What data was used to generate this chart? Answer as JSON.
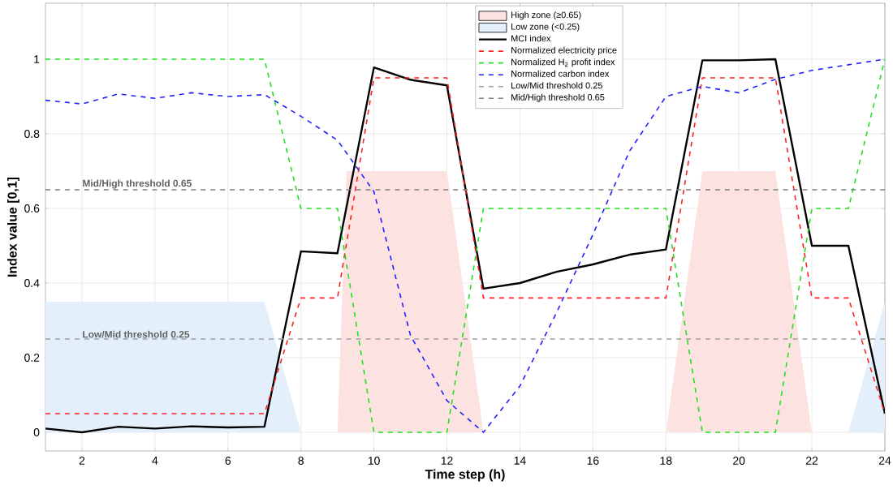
{
  "chart_data": {
    "type": "line",
    "xlabel": "Time step (h)",
    "ylabel": "Index value [0,1]",
    "x": [
      1,
      2,
      3,
      4,
      5,
      6,
      7,
      8,
      9,
      10,
      11,
      12,
      13,
      14,
      15,
      16,
      17,
      18,
      19,
      20,
      21,
      22,
      23,
      24
    ],
    "xlim": [
      1,
      24
    ],
    "ylim": [
      -0.05,
      1.15
    ],
    "xticks": [
      2,
      4,
      6,
      8,
      10,
      12,
      14,
      16,
      18,
      20,
      22,
      24
    ],
    "yticks": [
      0,
      0.2,
      0.4,
      0.6,
      0.8,
      1
    ],
    "grid": true,
    "legend": "top",
    "marker": "none",
    "series": [
      {
        "name": "High zone (≥0.65)",
        "type": "area",
        "color": "#fde2e2",
        "x": [
          9,
          9.25,
          12,
          13,
          18,
          19,
          21,
          22
        ],
        "values": [
          0,
          0.7,
          0.7,
          0,
          0,
          0.7,
          0.7,
          0
        ]
      },
      {
        "name": "Low zone (<0.25)",
        "type": "area",
        "color": "#e3f0fc",
        "x": [
          1,
          7,
          8,
          23,
          24
        ],
        "values": [
          0.35,
          0.35,
          0,
          0,
          0.35
        ]
      },
      {
        "name": "MCI index",
        "color": "#000000",
        "line_style": "solid",
        "values": [
          0.01,
          0.0,
          0.015,
          0.01,
          0.016,
          0.013,
          0.015,
          0.485,
          0.48,
          0.978,
          0.945,
          0.93,
          0.385,
          0.4,
          0.43,
          0.45,
          0.476,
          0.49,
          0.997,
          0.997,
          1.0,
          0.5,
          0.5,
          0.05
        ]
      },
      {
        "name": "Normalized electricity price",
        "color": "#ff2020",
        "line_style": "dashed",
        "values": [
          0.05,
          0.05,
          0.05,
          0.05,
          0.05,
          0.05,
          0.05,
          0.36,
          0.36,
          0.95,
          0.95,
          0.95,
          0.36,
          0.36,
          0.36,
          0.36,
          0.36,
          0.36,
          0.95,
          0.95,
          0.95,
          0.36,
          0.36,
          0.05
        ]
      },
      {
        "name": "Normalized H$_{2}$ profit index",
        "color": "#20e020",
        "line_style": "dashed",
        "values": [
          1,
          1,
          1,
          1,
          1,
          1,
          1,
          0.6,
          0.6,
          0,
          0,
          0,
          0.6,
          0.6,
          0.6,
          0.6,
          0.6,
          0.6,
          0,
          0,
          0,
          0.6,
          0.6,
          1
        ]
      },
      {
        "name": "Normalized carbon index",
        "color": "#2020ff",
        "line_style": "dashed",
        "values": [
          0.89,
          0.88,
          0.907,
          0.895,
          0.91,
          0.9,
          0.905,
          0.847,
          0.783,
          0.645,
          0.26,
          0.085,
          0.0,
          0.124,
          0.32,
          0.53,
          0.753,
          0.9,
          0.927,
          0.91,
          0.946,
          0.97,
          0.985,
          1.0
        ]
      }
    ],
    "ref_lines": [
      {
        "axis": "y",
        "value": 0.25,
        "label": "Low/Mid threshold 0.25",
        "color": "#a0a0a0",
        "line_style": "dashed"
      },
      {
        "axis": "y",
        "value": 0.65,
        "label": "Mid/High threshold 0.65",
        "color": "#808080",
        "line_style": "dashed"
      }
    ]
  }
}
